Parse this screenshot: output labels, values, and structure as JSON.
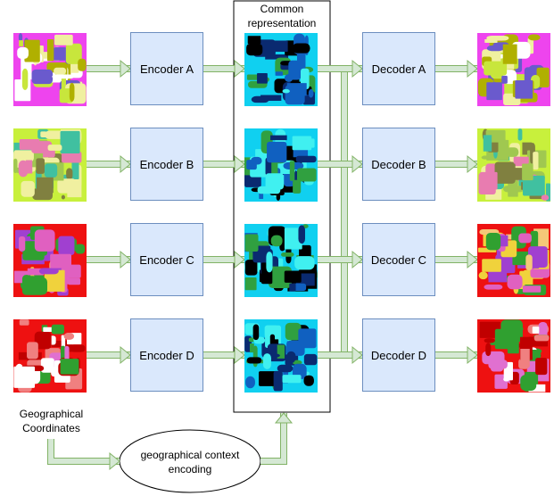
{
  "common_representation": {
    "title": "Common representation"
  },
  "encoders": [
    "Encoder A",
    "Encoder B",
    "Encoder C",
    "Encoder D"
  ],
  "decoders": [
    "Decoder A",
    "Decoder B",
    "Decoder C",
    "Decoder D"
  ],
  "inputs": {
    "label": "Geographical Coordinates"
  },
  "context_encoding": {
    "label": "geographical context encoding"
  }
}
